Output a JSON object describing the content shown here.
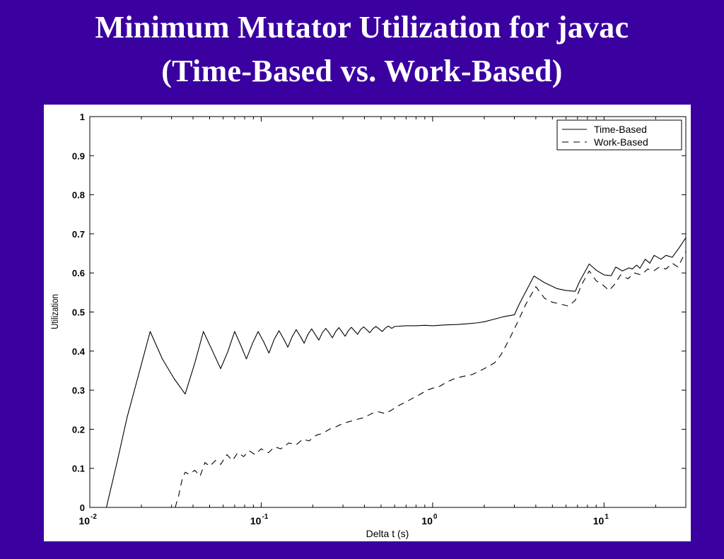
{
  "slide": {
    "title_line1": "Minimum Mutator Utilization for javac",
    "title_line2": "(Time-Based vs. Work-Based)"
  },
  "colors": {
    "background": "#3a00a0",
    "panel": "#ffffff",
    "ink": "#000000"
  },
  "chart_data": {
    "type": "line",
    "xscale": "log",
    "xlim": [
      0.01,
      30
    ],
    "ylim": [
      0,
      1
    ],
    "xlabel": "Delta t (s)",
    "ylabel": "Utilization",
    "yticks": [
      0,
      0.1,
      0.2,
      0.3,
      0.4,
      0.5,
      0.6,
      0.7,
      0.8,
      0.9,
      1
    ],
    "ytick_labels": [
      "0",
      "0.1",
      "0.2",
      "0.3",
      "0.4",
      "0.5",
      "0.6",
      "0.7",
      "0.8",
      "0.9",
      "1"
    ],
    "xticks": [
      {
        "value": 0.01,
        "base": "10",
        "exp": "-2"
      },
      {
        "value": 0.1,
        "base": "10",
        "exp": "-1"
      },
      {
        "value": 1,
        "base": "10",
        "exp": "0"
      },
      {
        "value": 10,
        "base": "10",
        "exp": "1"
      }
    ],
    "grid": false,
    "legend_position": "top-right",
    "series": [
      {
        "name": "Time-Based",
        "style": "solid",
        "x": [
          0.0125,
          0.0145,
          0.0165,
          0.019,
          0.0225,
          0.0265,
          0.031,
          0.036,
          0.041,
          0.046,
          0.052,
          0.058,
          0.064,
          0.07,
          0.076,
          0.082,
          0.089,
          0.096,
          0.103,
          0.111,
          0.119,
          0.127,
          0.135,
          0.143,
          0.151,
          0.16,
          0.169,
          0.178,
          0.187,
          0.197,
          0.207,
          0.217,
          0.227,
          0.238,
          0.249,
          0.26,
          0.272,
          0.284,
          0.296,
          0.309,
          0.322,
          0.336,
          0.35,
          0.365,
          0.38,
          0.396,
          0.412,
          0.43,
          0.448,
          0.467,
          0.487,
          0.508,
          0.53,
          0.553,
          0.577,
          0.6,
          0.7,
          0.8,
          0.9,
          1.0,
          1.2,
          1.4,
          1.6,
          1.8,
          2.0,
          2.3,
          2.6,
          3.0,
          3.2,
          3.9,
          4.5,
          5.3,
          6.0,
          6.8,
          7.2,
          8.2,
          9.0,
          10.0,
          11.0,
          11.7,
          12.8,
          14.0,
          14.6,
          15.5,
          16.2,
          17.4,
          18.5,
          19.6,
          21.5,
          23.0,
          25.0,
          27.5,
          30.0
        ],
        "y": [
          0.0,
          0.12,
          0.23,
          0.33,
          0.45,
          0.38,
          0.33,
          0.29,
          0.37,
          0.45,
          0.4,
          0.355,
          0.4,
          0.45,
          0.415,
          0.38,
          0.42,
          0.45,
          0.425,
          0.395,
          0.43,
          0.452,
          0.432,
          0.41,
          0.435,
          0.455,
          0.438,
          0.42,
          0.442,
          0.457,
          0.442,
          0.428,
          0.447,
          0.458,
          0.447,
          0.434,
          0.45,
          0.46,
          0.449,
          0.438,
          0.452,
          0.461,
          0.452,
          0.443,
          0.455,
          0.462,
          0.455,
          0.447,
          0.457,
          0.463,
          0.457,
          0.45,
          0.459,
          0.464,
          0.458,
          0.463,
          0.465,
          0.465,
          0.466,
          0.465,
          0.467,
          0.468,
          0.47,
          0.472,
          0.475,
          0.482,
          0.488,
          0.493,
          0.52,
          0.592,
          0.575,
          0.56,
          0.555,
          0.553,
          0.578,
          0.623,
          0.607,
          0.595,
          0.593,
          0.615,
          0.605,
          0.613,
          0.61,
          0.62,
          0.612,
          0.635,
          0.625,
          0.645,
          0.635,
          0.645,
          0.64,
          0.665,
          0.69
        ]
      },
      {
        "name": "Work-Based",
        "style": "dashed",
        "x": [
          0.0315,
          0.033,
          0.0345,
          0.036,
          0.038,
          0.041,
          0.044,
          0.047,
          0.05,
          0.054,
          0.058,
          0.063,
          0.068,
          0.073,
          0.079,
          0.085,
          0.092,
          0.1,
          0.11,
          0.12,
          0.13,
          0.145,
          0.16,
          0.175,
          0.19,
          0.21,
          0.23,
          0.25,
          0.27,
          0.3,
          0.33,
          0.36,
          0.4,
          0.44,
          0.48,
          0.53,
          0.58,
          0.63,
          0.7,
          0.77,
          0.85,
          0.93,
          1.0,
          1.1,
          1.2,
          1.35,
          1.5,
          1.7,
          1.9,
          2.1,
          2.3,
          2.5,
          2.8,
          3.1,
          3.5,
          4.0,
          4.5,
          5.0,
          5.6,
          6.2,
          6.8,
          7.4,
          8.2,
          9.0,
          9.8,
          10.7,
          11.5,
          12.5,
          13.8,
          15.0,
          16.5,
          18.0,
          19.5,
          21.0,
          23.0,
          25.0,
          27.0,
          30.0
        ],
        "y": [
          0.0,
          0.03,
          0.07,
          0.09,
          0.085,
          0.095,
          0.08,
          0.115,
          0.105,
          0.12,
          0.11,
          0.135,
          0.12,
          0.14,
          0.13,
          0.145,
          0.135,
          0.15,
          0.14,
          0.155,
          0.15,
          0.165,
          0.16,
          0.175,
          0.17,
          0.185,
          0.19,
          0.2,
          0.205,
          0.215,
          0.22,
          0.225,
          0.23,
          0.24,
          0.245,
          0.24,
          0.25,
          0.26,
          0.27,
          0.28,
          0.29,
          0.3,
          0.305,
          0.31,
          0.32,
          0.33,
          0.335,
          0.34,
          0.35,
          0.36,
          0.37,
          0.39,
          0.43,
          0.47,
          0.52,
          0.565,
          0.535,
          0.525,
          0.52,
          0.515,
          0.53,
          0.57,
          0.605,
          0.58,
          0.57,
          0.555,
          0.57,
          0.595,
          0.585,
          0.6,
          0.595,
          0.61,
          0.605,
          0.615,
          0.61,
          0.625,
          0.615,
          0.655
        ]
      }
    ]
  }
}
